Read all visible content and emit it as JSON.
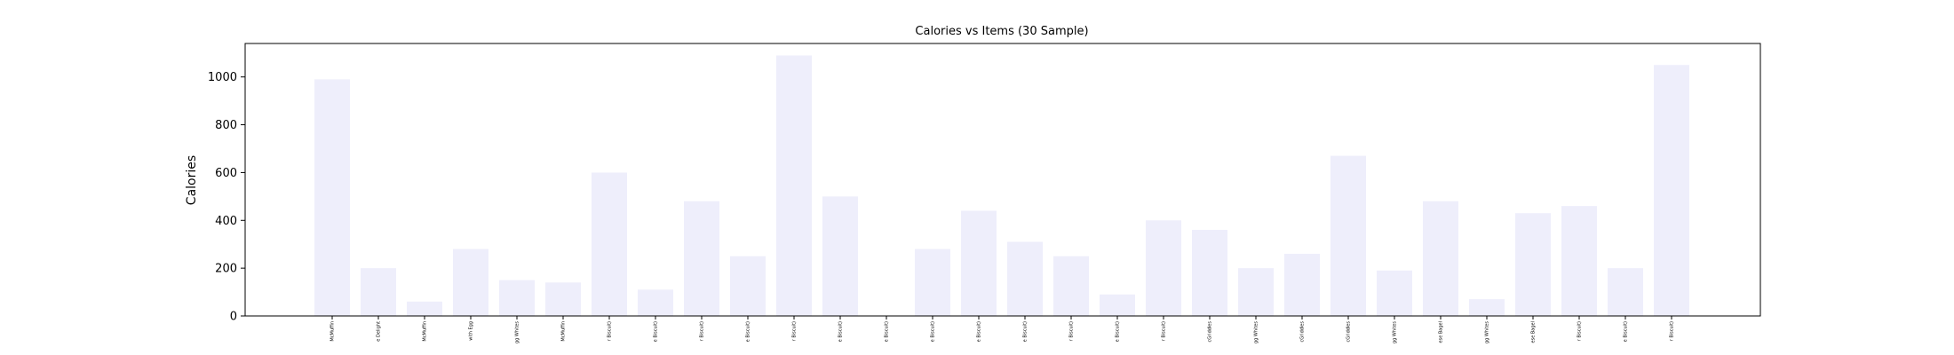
{
  "chart_data": {
    "type": "bar",
    "title": "Calories vs Items (30 Sample)",
    "xlabel": "",
    "ylabel": "Calories",
    "ylim": [
      0,
      1140
    ],
    "yticks": [
      0,
      200,
      400,
      600,
      800,
      1000
    ],
    "grid": false,
    "bar_color": "#eeeefb",
    "categories": [
      "McMuffin",
      "e Delight",
      "McMuffin",
      "with Egg",
      "gg Whites",
      "McMuffin",
      "r Biscuit)",
      "e Biscuit)",
      "r Biscuit)",
      "e Biscuit)",
      "r Biscuit)",
      "e Biscuit)",
      "e Biscuit)",
      "e Biscuit)",
      "e Biscuit)",
      "e Biscuit)",
      "r Biscuit)",
      "e Biscuit)",
      "r Biscuit)",
      "cGriddles",
      "gg Whites",
      "cGriddles",
      "cGriddles",
      "gg Whites",
      "ese Bagel",
      "gg Whites",
      "ese Bagel",
      "r Biscuit)",
      "e Biscuit)",
      "r Biscuit)"
    ],
    "values": [
      990,
      200,
      60,
      280,
      150,
      140,
      600,
      110,
      480,
      250,
      1090,
      500,
      0,
      280,
      440,
      310,
      250,
      90,
      400,
      360,
      200,
      260,
      670,
      190,
      480,
      70,
      430,
      460,
      200,
      1050
    ]
  }
}
